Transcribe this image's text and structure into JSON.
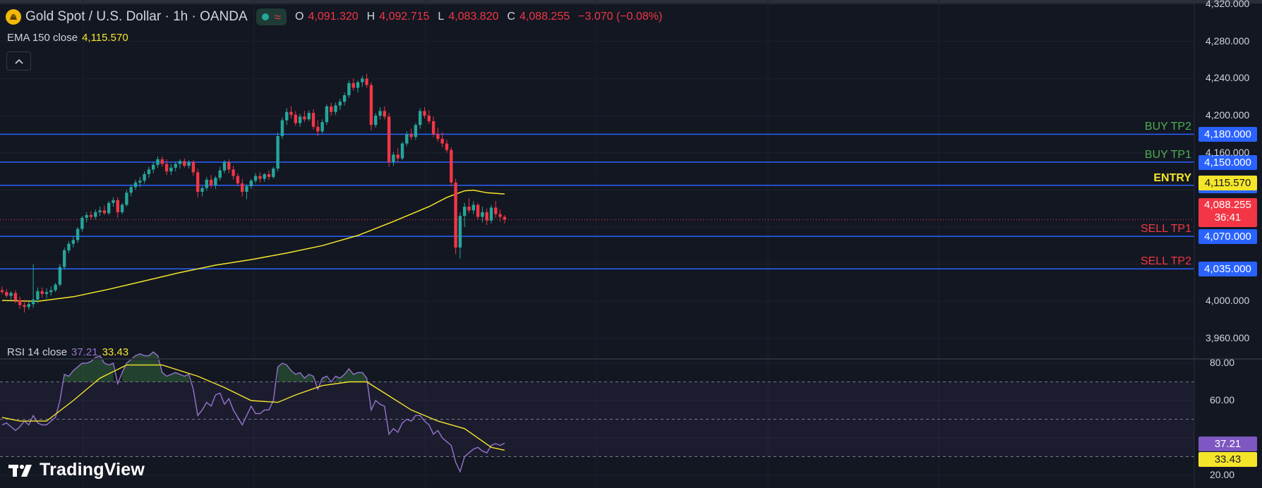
{
  "header": {
    "symbol_title": "Gold Spot / U.S. Dollar · 1h · OANDA",
    "open_key": "O",
    "open": "4,091.320",
    "high_key": "H",
    "high": "4,092.715",
    "low_key": "L",
    "low": "4,083.820",
    "close_key": "C",
    "close": "4,088.255",
    "change": "−3.070 (−0.08%)"
  },
  "ema": {
    "label": "EMA 150 close",
    "value": "4,115.570"
  },
  "rsi": {
    "label": "RSI 14 close",
    "value": "37.21",
    "ma_value": "33.43"
  },
  "logo": {
    "text": "TradingView"
  },
  "levels": [
    {
      "label": "BUY TP2",
      "price": 4180.0,
      "price_text": "4,180.000",
      "color": "#4caf50"
    },
    {
      "label": "BUY TP1",
      "price": 4150.0,
      "price_text": "4,150.000",
      "color": "#4caf50"
    },
    {
      "label": "ENTRY",
      "price": 4125.0,
      "price_text": "4,125.000",
      "color": "#f5e52a"
    },
    {
      "label": "SELL TP1",
      "price": 4070.0,
      "price_text": "4,070.000",
      "color": "#f23645"
    },
    {
      "label": "SELL TP2",
      "price": 4035.0,
      "price_text": "4,035.000",
      "color": "#f23645"
    }
  ],
  "price_tags": {
    "ema": "4,115.570",
    "last_price": "4,088.255",
    "countdown": "36:41",
    "rsi": "37.21",
    "rsi_ma": "33.43"
  },
  "colors": {
    "up": "#26a69a",
    "down": "#f23645",
    "ema": "#f5e52a",
    "rsi": "#9575cd",
    "level_line": "#2962ff",
    "bg": "#131722"
  },
  "chart_data": [
    {
      "type": "candlestick",
      "title": "Gold Spot / U.S. Dollar · 1h · OANDA",
      "price_axis_ticks": [
        "4,320.000",
        "4,280.000",
        "4,240.000",
        "4,200.000",
        "4,160.000",
        "4,000.000",
        "3,960.000"
      ],
      "ylim": [
        3950,
        4320
      ],
      "grid": true,
      "candles": [
        [
          4012,
          4016,
          4008,
          4010
        ],
        [
          4010,
          4013,
          4004,
          4006
        ],
        [
          4006,
          4011,
          4002,
          4009
        ],
        [
          4009,
          4012,
          3998,
          4001
        ],
        [
          4001,
          4005,
          3992,
          3996
        ],
        [
          3996,
          4002,
          3988,
          3994
        ],
        [
          3994,
          4000,
          3991,
          3997
        ],
        [
          3997,
          4040,
          3993,
          4002
        ],
        [
          4002,
          4015,
          3998,
          4011
        ],
        [
          4011,
          4015,
          4004,
          4008
        ],
        [
          4008,
          4014,
          4003,
          4010
        ],
        [
          4010,
          4016,
          4006,
          4012
        ],
        [
          4012,
          4020,
          4010,
          4018
        ],
        [
          4018,
          4040,
          4016,
          4037
        ],
        [
          4037,
          4058,
          4034,
          4055
        ],
        [
          4055,
          4065,
          4052,
          4062
        ],
        [
          4062,
          4070,
          4058,
          4066
        ],
        [
          4066,
          4080,
          4063,
          4078
        ],
        [
          4078,
          4092,
          4075,
          4090
        ],
        [
          4090,
          4096,
          4085,
          4093
        ],
        [
          4093,
          4097,
          4088,
          4091
        ],
        [
          4091,
          4099,
          4088,
          4096
        ],
        [
          4096,
          4102,
          4092,
          4098
        ],
        [
          4098,
          4103,
          4093,
          4095
        ],
        [
          4095,
          4108,
          4093,
          4106
        ],
        [
          4106,
          4112,
          4102,
          4109
        ],
        [
          4109,
          4112,
          4090,
          4096
        ],
        [
          4096,
          4106,
          4094,
          4104
        ],
        [
          4104,
          4120,
          4102,
          4117
        ],
        [
          4117,
          4126,
          4113,
          4123
        ],
        [
          4123,
          4131,
          4120,
          4128
        ],
        [
          4128,
          4134,
          4123,
          4130
        ],
        [
          4130,
          4140,
          4127,
          4137
        ],
        [
          4137,
          4145,
          4133,
          4142
        ],
        [
          4142,
          4150,
          4138,
          4147
        ],
        [
          4147,
          4156,
          4144,
          4153
        ],
        [
          4153,
          4156,
          4145,
          4148
        ],
        [
          4148,
          4153,
          4136,
          4140
        ],
        [
          4140,
          4148,
          4136,
          4144
        ],
        [
          4144,
          4150,
          4140,
          4148
        ],
        [
          4148,
          4153,
          4143,
          4151
        ],
        [
          4151,
          4154,
          4144,
          4146
        ],
        [
          4146,
          4152,
          4143,
          4150
        ],
        [
          4150,
          4152,
          4135,
          4139
        ],
        [
          4139,
          4143,
          4112,
          4118
        ],
        [
          4118,
          4124,
          4113,
          4122
        ],
        [
          4122,
          4134,
          4119,
          4131
        ],
        [
          4131,
          4136,
          4122,
          4125
        ],
        [
          4125,
          4135,
          4121,
          4133
        ],
        [
          4133,
          4145,
          4130,
          4141
        ],
        [
          4141,
          4152,
          4138,
          4150
        ],
        [
          4150,
          4153,
          4138,
          4142
        ],
        [
          4142,
          4146,
          4131,
          4135
        ],
        [
          4135,
          4138,
          4124,
          4127
        ],
        [
          4127,
          4132,
          4113,
          4118
        ],
        [
          4118,
          4126,
          4110,
          4124
        ],
        [
          4124,
          4132,
          4121,
          4130
        ],
        [
          4130,
          4138,
          4127,
          4135
        ],
        [
          4135,
          4139,
          4128,
          4132
        ],
        [
          4132,
          4138,
          4129,
          4137
        ],
        [
          4137,
          4141,
          4131,
          4134
        ],
        [
          4134,
          4145,
          4132,
          4143
        ],
        [
          4143,
          4182,
          4140,
          4178
        ],
        [
          4178,
          4198,
          4175,
          4195
        ],
        [
          4195,
          4208,
          4190,
          4204
        ],
        [
          4204,
          4210,
          4197,
          4201
        ],
        [
          4201,
          4205,
          4189,
          4192
        ],
        [
          4192,
          4202,
          4188,
          4199
        ],
        [
          4199,
          4205,
          4193,
          4196
        ],
        [
          4196,
          4206,
          4194,
          4203
        ],
        [
          4203,
          4207,
          4185,
          4188
        ],
        [
          4188,
          4195,
          4178,
          4183
        ],
        [
          4183,
          4196,
          4181,
          4193
        ],
        [
          4193,
          4212,
          4190,
          4210
        ],
        [
          4210,
          4214,
          4200,
          4204
        ],
        [
          4204,
          4214,
          4201,
          4211
        ],
        [
          4211,
          4218,
          4206,
          4215
        ],
        [
          4215,
          4225,
          4211,
          4222
        ],
        [
          4222,
          4238,
          4219,
          4235
        ],
        [
          4235,
          4240,
          4227,
          4230
        ],
        [
          4230,
          4238,
          4225,
          4236
        ],
        [
          4236,
          4243,
          4231,
          4240
        ],
        [
          4240,
          4245,
          4230,
          4233
        ],
        [
          4233,
          4236,
          4184,
          4190
        ],
        [
          4190,
          4203,
          4187,
          4200
        ],
        [
          4200,
          4209,
          4196,
          4205
        ],
        [
          4205,
          4210,
          4196,
          4199
        ],
        [
          4199,
          4203,
          4145,
          4150
        ],
        [
          4150,
          4161,
          4146,
          4158
        ],
        [
          4158,
          4165,
          4150,
          4154
        ],
        [
          4154,
          4172,
          4152,
          4170
        ],
        [
          4170,
          4183,
          4167,
          4180
        ],
        [
          4180,
          4186,
          4174,
          4177
        ],
        [
          4177,
          4192,
          4174,
          4190
        ],
        [
          4190,
          4208,
          4186,
          4205
        ],
        [
          4205,
          4209,
          4197,
          4200
        ],
        [
          4200,
          4206,
          4191,
          4194
        ],
        [
          4194,
          4199,
          4177,
          4180
        ],
        [
          4180,
          4187,
          4172,
          4175
        ],
        [
          4175,
          4182,
          4166,
          4170
        ],
        [
          4170,
          4174,
          4160,
          4163
        ],
        [
          4163,
          4166,
          4124,
          4128
        ],
        [
          4128,
          4132,
          4051,
          4058
        ],
        [
          4058,
          4096,
          4046,
          4092
        ],
        [
          4092,
          4106,
          4080,
          4102
        ],
        [
          4102,
          4111,
          4095,
          4098
        ],
        [
          4098,
          4108,
          4094,
          4104
        ],
        [
          4104,
          4106,
          4088,
          4091
        ],
        [
          4091,
          4102,
          4085,
          4096
        ],
        [
          4096,
          4100,
          4082,
          4087
        ],
        [
          4087,
          4104,
          4084,
          4101
        ],
        [
          4101,
          4108,
          4090,
          4094
        ],
        [
          4094,
          4099,
          4086,
          4091
        ],
        [
          4091,
          4093,
          4084,
          4088
        ]
      ],
      "ema": [
        [
          0,
          4001.0
        ],
        [
          8,
          4000.0
        ],
        [
          16,
          4005.0
        ],
        [
          24,
          4013.0
        ],
        [
          32,
          4022.0
        ],
        [
          40,
          4031.0
        ],
        [
          48,
          4039.0
        ],
        [
          56,
          4045.0
        ],
        [
          64,
          4052.0
        ],
        [
          72,
          4060.0
        ],
        [
          80,
          4071.0
        ],
        [
          88,
          4086.0
        ],
        [
          96,
          4102.0
        ],
        [
          100,
          4112.0
        ],
        [
          104,
          4119.0
        ],
        [
          106,
          4119.8
        ],
        [
          109,
          4117.0
        ],
        [
          113,
          4115.6
        ]
      ]
    },
    {
      "type": "line",
      "title": "RSI 14 close",
      "y_axis_ticks": [
        "80.00",
        "60.00",
        "20.00"
      ],
      "ylim": [
        20,
        88
      ],
      "bands": [
        70,
        50,
        30
      ],
      "series": [
        {
          "name": "RSI",
          "values": [
            47,
            48,
            46,
            44,
            46,
            49,
            47,
            52,
            48,
            47,
            47,
            49,
            51,
            60,
            74,
            73,
            76,
            78,
            80,
            80,
            81,
            83,
            84,
            80,
            79,
            80,
            69,
            75,
            80,
            82,
            84,
            85,
            84,
            84,
            86,
            84,
            75,
            73,
            74,
            75,
            74,
            73,
            74,
            66,
            52,
            55,
            59,
            57,
            63,
            64,
            58,
            61,
            55,
            51,
            47,
            52,
            57,
            53,
            53,
            55,
            55,
            60,
            78,
            80,
            79,
            76,
            74,
            75,
            72,
            74,
            73,
            66,
            72,
            73,
            70,
            73,
            72,
            74,
            77,
            74,
            75,
            75,
            72,
            55,
            60,
            58,
            57,
            42,
            45,
            43,
            48,
            50,
            49,
            52,
            52,
            49,
            47,
            42,
            44,
            40,
            38,
            36,
            27,
            22,
            30,
            32,
            34,
            35,
            33,
            32,
            36,
            37,
            36,
            37.21
          ]
        },
        {
          "name": "RSI-based MA",
          "values": [
            [
              0,
              51
            ],
            [
              4,
              49
            ],
            [
              10,
              49
            ],
            [
              16,
              60
            ],
            [
              22,
              72
            ],
            [
              28,
              79
            ],
            [
              36,
              79
            ],
            [
              44,
              73
            ],
            [
              50,
              67
            ],
            [
              56,
              60
            ],
            [
              62,
              59
            ],
            [
              66,
              63
            ],
            [
              72,
              68
            ],
            [
              78,
              70
            ],
            [
              82,
              70
            ],
            [
              86,
              64
            ],
            [
              92,
              55
            ],
            [
              98,
              49
            ],
            [
              104,
              45
            ],
            [
              110,
              35
            ],
            [
              113,
              33.43
            ]
          ]
        }
      ]
    }
  ]
}
